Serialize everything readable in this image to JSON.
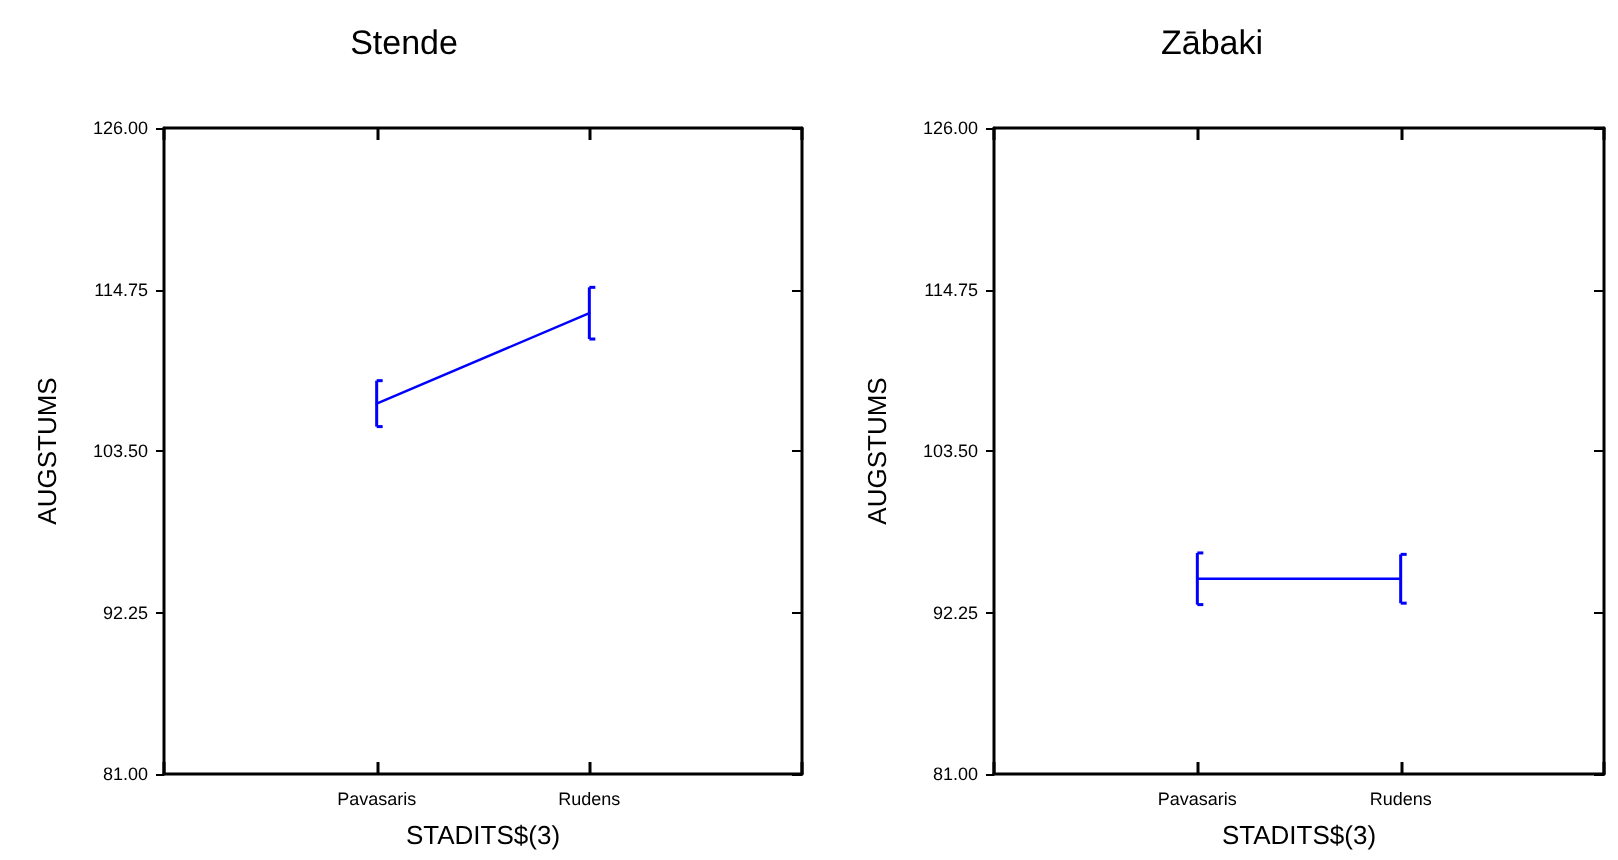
{
  "chart_data": [
    {
      "type": "line",
      "title": "Stende",
      "xlabel": "STADITS$(3)",
      "ylabel": "AUGSTUMS",
      "categories": [
        "Pavasaris",
        "Rudens"
      ],
      "series": [
        {
          "color": "#0000ff",
          "values": [
            106.8,
            113.1
          ],
          "errors": [
            1.6,
            1.8
          ]
        }
      ],
      "ylim": [
        81,
        126
      ],
      "yticks": [
        {
          "value": 81,
          "label": "81.00"
        },
        {
          "value": 92.25,
          "label": "92.25"
        },
        {
          "value": 103.5,
          "label": "103.50"
        },
        {
          "value": 114.75,
          "label": "114.75"
        },
        {
          "value": 126,
          "label": "126.00"
        }
      ],
      "grid": false,
      "marker": "none",
      "line_style": "solid"
    },
    {
      "type": "line",
      "title": "Zābaki",
      "xlabel": "STADITS$(3)",
      "ylabel": "AUGSTUMS",
      "categories": [
        "Pavasaris",
        "Rudens"
      ],
      "series": [
        {
          "color": "#0000ff",
          "values": [
            94.6,
            94.6
          ],
          "errors": [
            1.8,
            1.7
          ]
        }
      ],
      "ylim": [
        81,
        126
      ],
      "yticks": [
        {
          "value": 81,
          "label": "81.00"
        },
        {
          "value": 92.25,
          "label": "92.25"
        },
        {
          "value": 103.5,
          "label": "103.50"
        },
        {
          "value": 114.75,
          "label": "114.75"
        },
        {
          "value": 126,
          "label": "126.00"
        }
      ],
      "grid": false,
      "marker": "none",
      "line_style": "solid"
    }
  ]
}
